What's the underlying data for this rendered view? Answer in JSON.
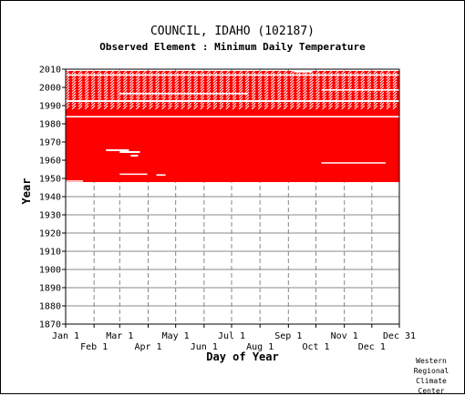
{
  "chart_data": {
    "type": "heatmap",
    "title": "COUNCIL, IDAHO   (102187)",
    "subtitle": "Observed Element : Minimum Daily Temperature",
    "xlabel": "Day of Year",
    "ylabel": "Year",
    "xlim": [
      1,
      365
    ],
    "ylim": [
      1870,
      2010
    ],
    "yticks": [
      1870,
      1880,
      1890,
      1900,
      1910,
      1920,
      1930,
      1940,
      1950,
      1960,
      1970,
      1980,
      1990,
      2000,
      2010
    ],
    "xticks_top_row": [
      {
        "label": "Jan 1",
        "day": 1
      },
      {
        "label": "Mar 1",
        "day": 60
      },
      {
        "label": "May 1",
        "day": 121
      },
      {
        "label": "Jul 1",
        "day": 182
      },
      {
        "label": "Sep 1",
        "day": 244
      },
      {
        "label": "Nov 1",
        "day": 305
      },
      {
        "label": "Dec 31",
        "day": 365
      }
    ],
    "xticks_bottom_row": [
      {
        "label": "Feb 1",
        "day": 32
      },
      {
        "label": "Apr 1",
        "day": 91
      },
      {
        "label": "Jun 1",
        "day": 152
      },
      {
        "label": "Aug 1",
        "day": 213
      },
      {
        "label": "Oct 1",
        "day": 274
      },
      {
        "label": "Dec 1",
        "day": 335
      }
    ],
    "data_color": "#ff0000",
    "grid": true,
    "record_years": [
      1948,
      2009
    ],
    "observed_blocks": [
      {
        "year_start": 1948,
        "year_end": 1987,
        "day_start": 1,
        "day_end": 365
      },
      {
        "year_start": 1987,
        "year_end": 2009,
        "day_start": 1,
        "day_end": 365
      }
    ],
    "gaps": [
      {
        "year_start": 1948.2,
        "year_end": 1948.9,
        "day_start": 1,
        "day_end": 20
      },
      {
        "year_start": 1952.0,
        "year_end": 1952.7,
        "day_start": 60,
        "day_end": 90
      },
      {
        "year_start": 1951.5,
        "year_end": 1952.3,
        "day_start": 100,
        "day_end": 110
      },
      {
        "year_start": 1958.2,
        "year_end": 1958.9,
        "day_start": 280,
        "day_end": 350
      },
      {
        "year_start": 1962.0,
        "year_end": 1963.0,
        "day_start": 72,
        "day_end": 80
      },
      {
        "year_start": 1964.0,
        "year_end": 1965.0,
        "day_start": 60,
        "day_end": 82
      },
      {
        "year_start": 1965.0,
        "year_end": 1966.0,
        "day_start": 45,
        "day_end": 70
      },
      {
        "year_start": 1983.5,
        "year_end": 1984.3,
        "day_start": 1,
        "day_end": 365
      },
      {
        "year_start": 1992.0,
        "year_end": 1993.0,
        "day_start": 1,
        "day_end": 365
      },
      {
        "year_start": 1996.2,
        "year_end": 1997.0,
        "day_start": 60,
        "day_end": 200
      },
      {
        "year_start": 1998.2,
        "year_end": 1999.0,
        "day_start": 280,
        "day_end": 365
      },
      {
        "year_start": 2006.5,
        "year_end": 2007.2,
        "day_start": 1,
        "day_end": 365
      },
      {
        "year_start": 2008.2,
        "year_end": 2009.0,
        "day_start": 250,
        "day_end": 270
      }
    ]
  },
  "credit": "Western Regional Climate Center"
}
